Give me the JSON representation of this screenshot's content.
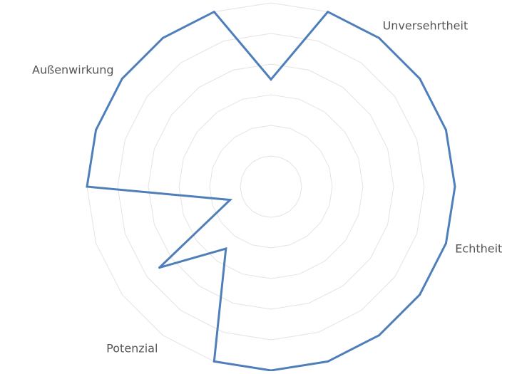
{
  "chart_data": {
    "type": "radar",
    "title": "",
    "axis_count": 20,
    "grid": true,
    "grid_levels": 6,
    "range": [
      0,
      6
    ],
    "axis_labels": [
      {
        "axis": 2,
        "label": "Unversehrtheit"
      },
      {
        "axis": 6,
        "label": "Echtheit"
      },
      {
        "axis": 12,
        "label": "Potenzial"
      },
      {
        "axis": 17,
        "label": "Außenwirkung"
      }
    ],
    "series": [
      {
        "values": [
          3.5,
          6.0,
          6.0,
          6.0,
          6.0,
          6.0,
          6.0,
          6.0,
          6.0,
          6.0,
          6.0,
          6.0,
          2.5,
          4.5,
          1.4,
          6.0,
          6.0,
          6.0,
          6.0,
          6.0
        ],
        "color": "#4f7fba"
      }
    ]
  }
}
